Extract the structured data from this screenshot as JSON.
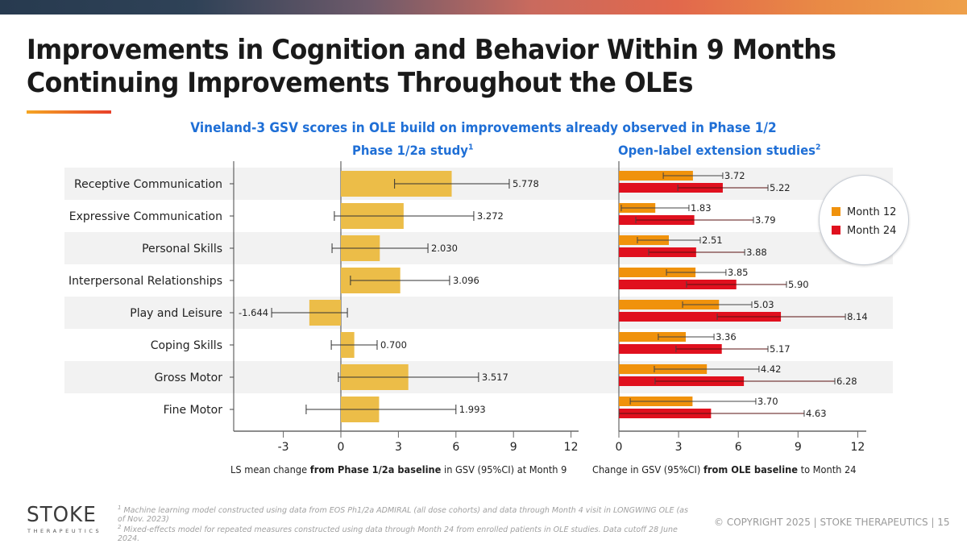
{
  "banner": {
    "colors": [
      "#273a4f",
      "#e2684c",
      "#eea04a"
    ]
  },
  "title": {
    "line1": "Improvements in Cognition and Behavior Within 9 Months",
    "line2": "Continuing Improvements Throughout the OLEs"
  },
  "subtitle": "Vineland-3 GSV scores in OLE build on improvements already observed in Phase 1/2",
  "panels": {
    "left_title": "Phase 1/2a study",
    "left_title_sup": "1",
    "right_title": "Open-label extension studies",
    "right_title_sup": "2"
  },
  "xlabels": {
    "left_pre": "LS mean change ",
    "left_bold": "from Phase 1/2a baseline",
    "left_post": " in GSV (95%CI) at Month 9",
    "right_pre": "Change in GSV (95%CI) ",
    "right_bold": "from OLE baseline",
    "right_post": " to Month 24"
  },
  "legend": {
    "items": [
      {
        "label": "Month 12",
        "color": "#f0920c"
      },
      {
        "label": "Month 24",
        "color": "#e0101e"
      }
    ]
  },
  "chart_data": [
    {
      "type": "bar",
      "orientation": "horizontal",
      "title": "Phase 1/2a study",
      "xlabel": "LS mean change from Phase 1/2a baseline in GSV (95%CI) at Month 9",
      "categories": [
        "Receptive Communication",
        "Expressive Communication",
        "Personal Skills",
        "Interpersonal Relationships",
        "Play and Leisure",
        "Coping Skills",
        "Gross Motor",
        "Fine Motor"
      ],
      "values": [
        5.778,
        3.272,
        2.03,
        3.096,
        -1.644,
        0.7,
        3.517,
        1.993
      ],
      "value_labels": [
        "5.778",
        "3.272",
        "2.030",
        "3.096",
        "-1.644",
        "0.700",
        "3.517",
        "1.993"
      ],
      "ci_low": [
        2.8,
        -0.34,
        -0.46,
        0.5,
        -3.61,
        -0.5,
        -0.13,
        -1.81
      ],
      "ci_high": [
        8.78,
        6.93,
        4.54,
        5.67,
        0.34,
        1.89,
        7.18,
        6.0
      ],
      "color": "#ecbd48",
      "xlim": [
        -5.5,
        12.4
      ],
      "xticks": [
        -3,
        0,
        3,
        6,
        9,
        12
      ],
      "grid": false
    },
    {
      "type": "bar",
      "orientation": "horizontal",
      "title": "Open-label extension studies",
      "xlabel": "Change in GSV (95%CI) from OLE baseline to Month 24",
      "categories": [
        "Receptive Communication",
        "Expressive Communication",
        "Personal Skills",
        "Interpersonal Relationships",
        "Play and Leisure",
        "Coping Skills",
        "Gross Motor",
        "Fine Motor"
      ],
      "series": [
        {
          "name": "Month 12",
          "color": "#f0920c",
          "values": [
            3.72,
            1.83,
            2.51,
            3.85,
            5.03,
            3.36,
            4.42,
            3.7
          ],
          "value_labels": [
            "3.72",
            "1.83",
            "2.51",
            "3.85",
            "5.03",
            "3.36",
            "4.42",
            "3.70"
          ],
          "ci_low": [
            2.23,
            0.12,
            0.93,
            2.39,
            3.2,
            1.98,
            1.78,
            0.57
          ],
          "ci_high": [
            5.22,
            3.52,
            4.09,
            5.38,
            6.68,
            4.78,
            7.04,
            6.88
          ]
        },
        {
          "name": "Month 24",
          "color": "#e0101e",
          "values": [
            5.22,
            3.79,
            3.88,
            5.9,
            8.14,
            5.17,
            6.28,
            4.63
          ],
          "value_labels": [
            "5.22",
            "3.79",
            "3.88",
            "5.90",
            "8.14",
            "5.17",
            "6.28",
            "4.63"
          ],
          "ci_low": [
            2.96,
            0.85,
            1.5,
            3.4,
            4.94,
            2.87,
            1.82,
            0.0
          ],
          "ci_high": [
            7.49,
            6.76,
            6.32,
            8.42,
            11.38,
            7.49,
            10.85,
            9.31
          ]
        }
      ],
      "legend": "top-right",
      "xlim": [
        0,
        12.4
      ],
      "xticks": [
        0,
        3,
        6,
        9,
        12
      ],
      "grid": false
    }
  ],
  "footer": {
    "logo_word": "STOKE",
    "logo_sub": "THERAPEUTICS",
    "footnote1_sup": "1",
    "footnote1": " Machine learning model constructed using data from EOS Ph1/2a ADMIRAL (all dose cohorts) and data through Month 4 visit in LONGWING OLE (as of Nov. 2023)",
    "footnote2_sup": "2",
    "footnote2": " Mixed-effects model for repeated measures constructed using data through Month 24 from enrolled patients in OLE studies. Data cutoff 28 June 2024.",
    "copyright": "© COPYRIGHT 2025   |  STOKE THERAPEUTICS  |  15"
  }
}
